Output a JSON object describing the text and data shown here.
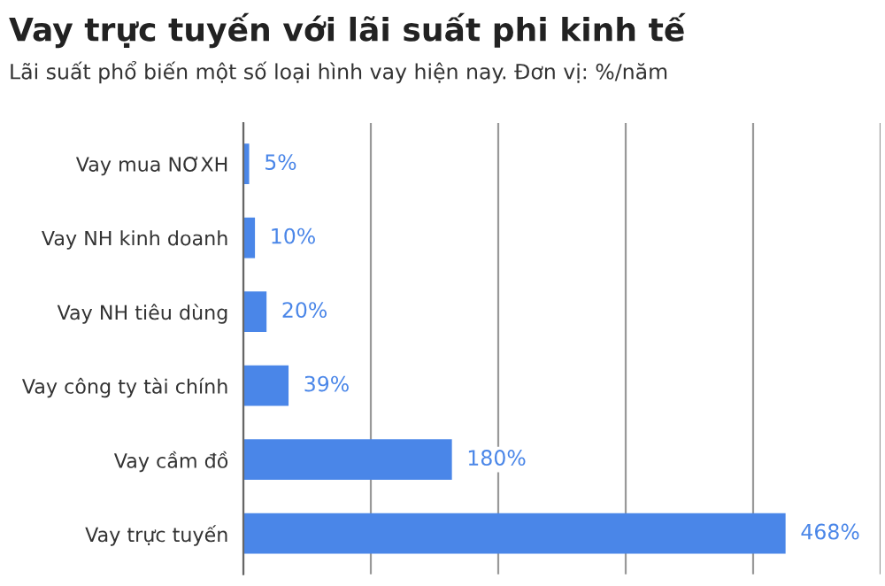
{
  "chart_data": {
    "type": "bar",
    "orientation": "horizontal",
    "title": "Vay trực tuyến với lãi suất phi kinh tế",
    "subtitle": "Lãi suất phổ biến một số loại hình vay hiện nay. Đơn vị: %/năm",
    "categories": [
      "Vay mua NƠXH",
      "Vay NH kinh doanh",
      "Vay NH tiêu dùng",
      "Vay công ty tài chính",
      "Vay cầm đồ",
      "Vay trực tuyến"
    ],
    "values": [
      5,
      10,
      20,
      39,
      180,
      468
    ],
    "color": "#4a86e8",
    "value_labels": [
      "5%",
      "10%",
      "20%",
      "39%",
      "180%",
      "468%"
    ],
    "xlim": [
      0,
      550
    ],
    "xticks": [
      {
        "value": 0,
        "label": null
      },
      {
        "value": 110,
        "label": null
      },
      {
        "value": 220,
        "label": null
      },
      {
        "value": 330,
        "label": null
      },
      {
        "value": 440,
        "label": null
      },
      {
        "value": 550,
        "label": null
      }
    ],
    "grid": "x",
    "tick_labels": "y"
  }
}
